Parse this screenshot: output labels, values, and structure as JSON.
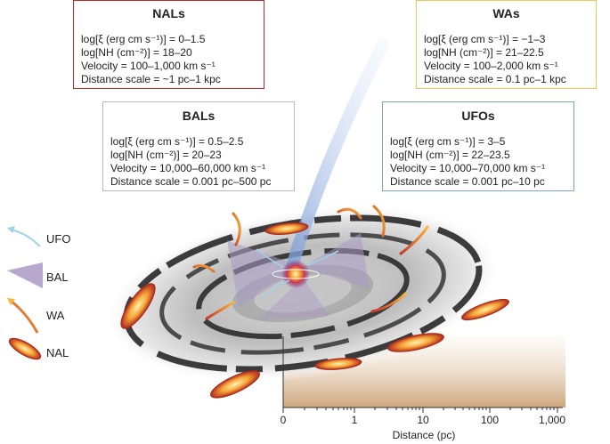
{
  "boxes": {
    "nals": {
      "title": "NALs",
      "border_color": "#b22a2a",
      "lines": [
        "log[ξ (erg cm s⁻¹)] = 0–1.5",
        "log[NH (cm⁻²)] = 18–20",
        "Velocity = 100–1,000 km s⁻¹",
        "Distance scale = ~1 pc–1 kpc"
      ]
    },
    "was": {
      "title": "WAs",
      "border_color": "#e8c95a",
      "lines": [
        "log[ξ (erg cm s⁻¹)] = −1–3",
        "log[NH (cm⁻²)] = 21–22.5",
        "Velocity = 100–2,000 km s⁻¹",
        "Distance scale = 0.1 pc–1 kpc"
      ]
    },
    "bals": {
      "title": "BALs",
      "border_color": "#b9b9b9",
      "lines": [
        "log[ξ (erg cm s⁻¹)] = 0.5–2.5",
        "log[NH (cm⁻²)] = 20–23",
        "Velocity = 10,000–60,000 km s⁻¹",
        "Distance scale = 0.001 pc–500 pc"
      ]
    },
    "ufos": {
      "title": "UFOs",
      "border_color": "#7fa6bd",
      "lines": [
        "log[ξ (erg cm s⁻¹)] = 3–5",
        "log[NH (cm⁻²)] = 22–23.5",
        "Velocity = 10,000–70,000 km s⁻¹",
        "Distance scale = 0.001 pc–10 pc"
      ]
    }
  },
  "legend": [
    {
      "label": "UFO",
      "icon": "ufo-arrow-icon",
      "color": "#9fd3e6"
    },
    {
      "label": "BAL",
      "icon": "bal-wedge-icon",
      "color": "#a99ac4"
    },
    {
      "label": "WA",
      "icon": "wa-arrow-icon",
      "color": "#f3a12e"
    },
    {
      "label": "NAL",
      "icon": "nal-cloud-icon",
      "color": "#c1372a"
    }
  ],
  "axis": {
    "ticks": [
      "0",
      "1",
      "10",
      "100",
      "1,000"
    ],
    "title": "Distance (pc)"
  }
}
